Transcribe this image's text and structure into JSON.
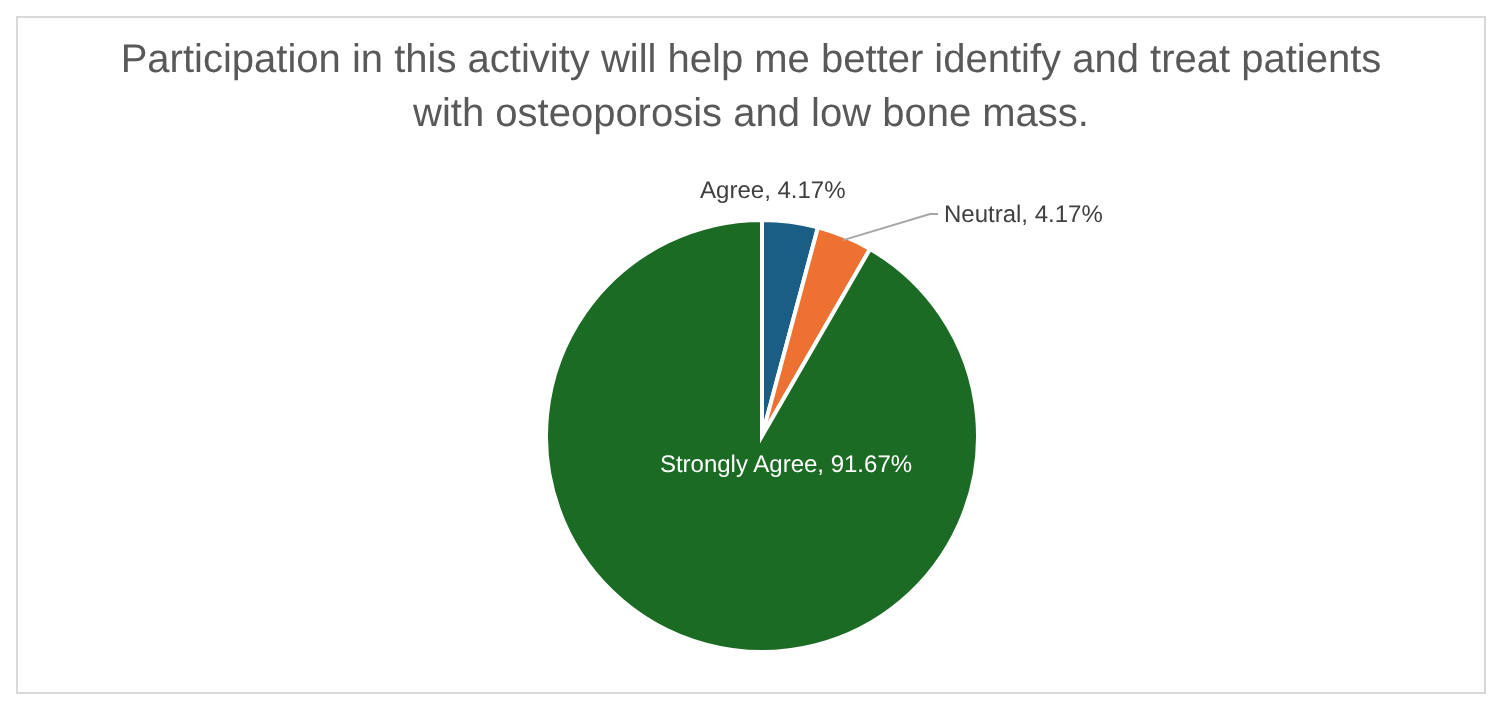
{
  "chart_data": {
    "type": "pie",
    "title": "Participation in this activity will help me better identify and treat patients with osteoporosis and low bone mass.",
    "categories": [
      "Agree",
      "Neutral",
      "Strongly Agree"
    ],
    "values": [
      4.17,
      4.17,
      91.67
    ],
    "value_labels": [
      "4.17%",
      "4.17%",
      "91.67%"
    ],
    "colors": [
      "#1a5e86",
      "#ed7232",
      "#1c6b25"
    ]
  }
}
